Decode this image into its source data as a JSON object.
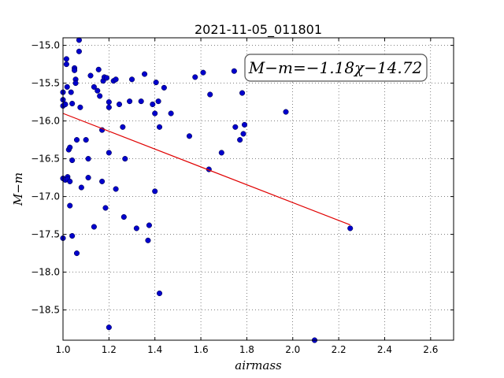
{
  "chart_data": {
    "type": "scatter",
    "title": "2021-11-05_011801",
    "xlabel": "airmass",
    "ylabel": "M−m",
    "xlim": [
      1.0,
      2.7
    ],
    "ylim": [
      -18.9,
      -14.9
    ],
    "y_inverted": true,
    "xticks": [
      1.0,
      1.2,
      1.4,
      1.6,
      1.8,
      2.0,
      2.2,
      2.4,
      2.6
    ],
    "yticks": [
      -15.0,
      -15.5,
      -16.0,
      -16.5,
      -17.0,
      -17.5,
      -18.0,
      -18.5
    ],
    "xtick_labels": [
      "1.0",
      "1.2",
      "1.4",
      "1.6",
      "1.8",
      "2.0",
      "2.2",
      "2.4",
      "2.6"
    ],
    "ytick_labels": [
      "−15.0",
      "−15.5",
      "−16.0",
      "−16.5",
      "−17.0",
      "−17.5",
      "−18.0",
      "−18.5"
    ],
    "grid": true,
    "annotation": "M−m=−1.18χ−14.72",
    "fit": {
      "slope": -1.18,
      "intercept": -14.72,
      "x_range": [
        1.0,
        2.25
      ],
      "color": "#e00000"
    },
    "point_color": "#0000cc",
    "points": [
      [
        1.0,
        -15.62
      ],
      [
        1.0,
        -15.72
      ],
      [
        1.0,
        -15.8
      ],
      [
        1.0,
        -16.76
      ],
      [
        1.0,
        -17.55
      ],
      [
        1.01,
        -15.78
      ],
      [
        1.01,
        -16.78
      ],
      [
        1.015,
        -15.18
      ],
      [
        1.015,
        -15.25
      ],
      [
        1.018,
        -15.55
      ],
      [
        1.02,
        -16.74
      ],
      [
        1.02,
        -16.77
      ],
      [
        1.025,
        -16.38
      ],
      [
        1.03,
        -16.35
      ],
      [
        1.03,
        -16.8
      ],
      [
        1.03,
        -17.12
      ],
      [
        1.035,
        -15.62
      ],
      [
        1.04,
        -15.77
      ],
      [
        1.04,
        -16.52
      ],
      [
        1.04,
        -17.52
      ],
      [
        1.05,
        -15.3
      ],
      [
        1.05,
        -15.33
      ],
      [
        1.055,
        -15.45
      ],
      [
        1.055,
        -15.5
      ],
      [
        1.06,
        -16.25
      ],
      [
        1.06,
        -17.75
      ],
      [
        1.07,
        -14.93
      ],
      [
        1.07,
        -15.08
      ],
      [
        1.075,
        -15.82
      ],
      [
        1.08,
        -16.88
      ],
      [
        1.1,
        -16.25
      ],
      [
        1.11,
        -16.5
      ],
      [
        1.11,
        -16.75
      ],
      [
        1.12,
        -15.4
      ],
      [
        1.135,
        -15.55
      ],
      [
        1.135,
        -17.4
      ],
      [
        1.15,
        -15.6
      ],
      [
        1.155,
        -15.32
      ],
      [
        1.16,
        -15.67
      ],
      [
        1.17,
        -16.12
      ],
      [
        1.17,
        -16.8
      ],
      [
        1.175,
        -15.47
      ],
      [
        1.18,
        -15.42
      ],
      [
        1.185,
        -17.15
      ],
      [
        1.19,
        -15.43
      ],
      [
        1.2,
        -15.75
      ],
      [
        1.2,
        -15.82
      ],
      [
        1.2,
        -16.42
      ],
      [
        1.2,
        -18.73
      ],
      [
        1.22,
        -15.47
      ],
      [
        1.23,
        -15.45
      ],
      [
        1.23,
        -16.9
      ],
      [
        1.245,
        -15.78
      ],
      [
        1.26,
        -16.08
      ],
      [
        1.265,
        -17.27
      ],
      [
        1.27,
        -16.5
      ],
      [
        1.29,
        -15.74
      ],
      [
        1.3,
        -15.45
      ],
      [
        1.32,
        -17.42
      ],
      [
        1.34,
        -15.74
      ],
      [
        1.355,
        -15.38
      ],
      [
        1.37,
        -17.58
      ],
      [
        1.375,
        -17.38
      ],
      [
        1.39,
        -15.78
      ],
      [
        1.4,
        -15.9
      ],
      [
        1.4,
        -16.93
      ],
      [
        1.405,
        -15.49
      ],
      [
        1.415,
        -15.74
      ],
      [
        1.42,
        -16.08
      ],
      [
        1.42,
        -18.28
      ],
      [
        1.44,
        -15.56
      ],
      [
        1.47,
        -15.9
      ],
      [
        1.55,
        -16.2
      ],
      [
        1.575,
        -15.42
      ],
      [
        1.61,
        -15.36
      ],
      [
        1.635,
        -16.64
      ],
      [
        1.64,
        -15.65
      ],
      [
        1.69,
        -16.42
      ],
      [
        1.745,
        -15.34
      ],
      [
        1.75,
        -16.08
      ],
      [
        1.77,
        -16.25
      ],
      [
        1.78,
        -15.63
      ],
      [
        1.785,
        -16.17
      ],
      [
        1.79,
        -16.05
      ],
      [
        1.97,
        -15.88
      ],
      [
        2.095,
        -18.9
      ],
      [
        2.25,
        -17.42
      ]
    ]
  }
}
